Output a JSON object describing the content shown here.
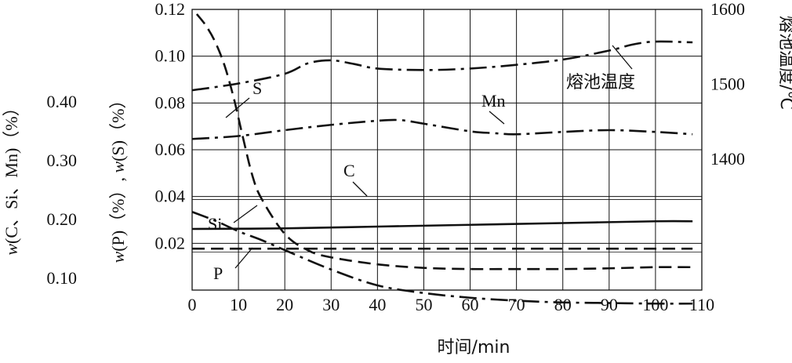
{
  "chart_data": {
    "type": "line",
    "title": "",
    "xlabel": "时间/min",
    "x_ticks": [
      "0",
      "10",
      "20",
      "30",
      "40",
      "50",
      "60",
      "70",
      "80",
      "90",
      "100",
      "110"
    ],
    "xlim": [
      0,
      110
    ],
    "y_axes": {
      "left_outer": {
        "label": "w(C、Si、Mn)（%）",
        "label_parts": {
          "w": "w",
          "open": "(",
          "mid": "C、Si、Mn",
          "close": ")（%）"
        },
        "ticks": [
          "0.40",
          "0.30",
          "0.20",
          "0.10"
        ],
        "tick_values": [
          0.4,
          0.3,
          0.2,
          0.1
        ]
      },
      "left_inner": {
        "label": "w(P)（%）, w(S)（%）",
        "label_parts": {
          "w1": "w",
          "p": "(P)（%）, ",
          "w2": "w",
          "s": "(S)（%）"
        },
        "ticks": [
          "0.12",
          "0.10",
          "0.08",
          "0.06",
          "0.04",
          "0.02"
        ],
        "tick_values": [
          0.12,
          0.1,
          0.08,
          0.06,
          0.04,
          0.02
        ],
        "ylim": [
          0,
          0.12
        ]
      },
      "right": {
        "label": "熔池温度/℃",
        "ticks": [
          "1600",
          "1500",
          "1400"
        ],
        "tick_values": [
          1600,
          1500,
          1400
        ],
        "ylim": [
          1225,
          1600
        ]
      }
    },
    "grid": true,
    "series": [
      {
        "name": "熔池温度",
        "style": "dashdot",
        "axis": "right",
        "x": [
          0,
          10,
          20,
          25,
          30,
          35,
          40,
          50,
          60,
          70,
          80,
          90,
          95,
          100,
          108
        ],
        "values": [
          1492,
          1501,
          1514,
          1528,
          1532,
          1527,
          1521,
          1519,
          1521,
          1526,
          1533,
          1545,
          1553,
          1557,
          1556
        ]
      },
      {
        "name": "Mn",
        "style": "dashdot",
        "axis": "left_outer",
        "x": [
          0,
          10,
          20,
          30,
          40,
          45,
          50,
          60,
          65,
          70,
          80,
          90,
          100,
          108
        ],
        "values": [
          0.337,
          0.342,
          0.352,
          0.361,
          0.368,
          0.369,
          0.363,
          0.35,
          0.347,
          0.345,
          0.349,
          0.352,
          0.349,
          0.345
        ]
      },
      {
        "name": "C",
        "style": "solid",
        "axis": "left_outer",
        "x": [
          0,
          20,
          40,
          60,
          80,
          100,
          108
        ],
        "values": [
          0.184,
          0.185,
          0.188,
          0.191,
          0.194,
          0.197,
          0.197
        ]
      },
      {
        "name": "Si",
        "style": "dashdot",
        "axis": "left_outer",
        "x": [
          0,
          5,
          10,
          15,
          20,
          30,
          40,
          50,
          60,
          70,
          80,
          90,
          100,
          108
        ],
        "values": [
          0.213,
          0.198,
          0.18,
          0.165,
          0.148,
          0.115,
          0.088,
          0.075,
          0.067,
          0.062,
          0.059,
          0.058,
          0.057,
          0.057
        ]
      },
      {
        "name": "S",
        "style": "dashed",
        "axis": "left_inner",
        "x": [
          1,
          3,
          5,
          7,
          9,
          11,
          13,
          15,
          20,
          25,
          30,
          40,
          50,
          60,
          70,
          80,
          90,
          100,
          108
        ],
        "values": [
          0.118,
          0.113,
          0.106,
          0.096,
          0.082,
          0.065,
          0.049,
          0.039,
          0.024,
          0.017,
          0.014,
          0.011,
          0.0095,
          0.009,
          0.009,
          0.009,
          0.0093,
          0.0098,
          0.0098
        ]
      },
      {
        "name": "P",
        "style": "dashed",
        "axis": "left_inner",
        "x": [
          0,
          108
        ],
        "values": [
          0.0177,
          0.0177
        ]
      }
    ],
    "annotations": [
      "S",
      "Mn",
      "熔池温度",
      "C",
      "Si",
      "P"
    ]
  }
}
